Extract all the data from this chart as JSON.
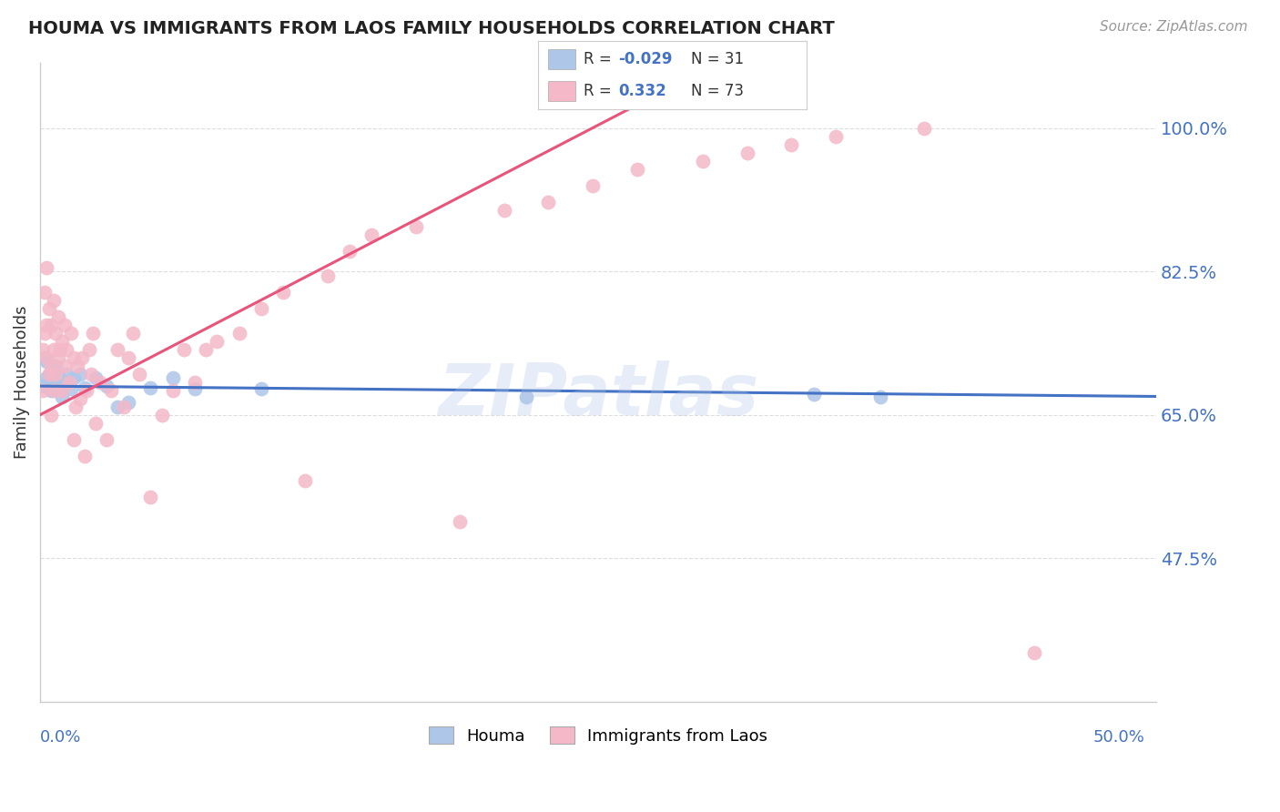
{
  "title": "HOUMA VS IMMIGRANTS FROM LAOS FAMILY HOUSEHOLDS CORRELATION CHART",
  "source": "Source: ZipAtlas.com",
  "ylabel": "Family Households",
  "ylim": [
    0.3,
    1.08
  ],
  "xlim": [
    0.0,
    0.505
  ],
  "yticks": [
    0.475,
    0.65,
    0.825,
    1.0
  ],
  "ytick_labels": [
    "47.5%",
    "65.0%",
    "82.5%",
    "100.0%"
  ],
  "houma_color": "#aec6e8",
  "laos_color": "#f4b8c8",
  "houma_line_color": "#4472c4",
  "laos_line_color": "#e8547a",
  "watermark": "ZIPatlas",
  "background_color": "#ffffff",
  "grid_color": "#dddddd",
  "houma_x": [
    0.001,
    0.002,
    0.003,
    0.003,
    0.004,
    0.005,
    0.005,
    0.006,
    0.006,
    0.007,
    0.007,
    0.008,
    0.009,
    0.01,
    0.011,
    0.012,
    0.014,
    0.015,
    0.018,
    0.02,
    0.025,
    0.03,
    0.035,
    0.04,
    0.05,
    0.06,
    0.07,
    0.1,
    0.22,
    0.35,
    0.38
  ],
  "houma_y": [
    0.685,
    0.72,
    0.695,
    0.715,
    0.7,
    0.68,
    0.695,
    0.705,
    0.69,
    0.7,
    0.71,
    0.685,
    0.695,
    0.672,
    0.69,
    0.7,
    0.682,
    0.695,
    0.7,
    0.683,
    0.695,
    0.685,
    0.66,
    0.665,
    0.683,
    0.695,
    0.682,
    0.682,
    0.672,
    0.675,
    0.672
  ],
  "laos_x": [
    0.001,
    0.001,
    0.002,
    0.002,
    0.003,
    0.003,
    0.003,
    0.004,
    0.004,
    0.005,
    0.005,
    0.005,
    0.006,
    0.006,
    0.006,
    0.007,
    0.007,
    0.008,
    0.008,
    0.009,
    0.01,
    0.01,
    0.011,
    0.011,
    0.012,
    0.013,
    0.014,
    0.015,
    0.015,
    0.016,
    0.017,
    0.018,
    0.019,
    0.02,
    0.021,
    0.022,
    0.023,
    0.024,
    0.025,
    0.027,
    0.03,
    0.032,
    0.035,
    0.038,
    0.04,
    0.042,
    0.045,
    0.05,
    0.055,
    0.06,
    0.065,
    0.07,
    0.075,
    0.08,
    0.09,
    0.1,
    0.11,
    0.12,
    0.13,
    0.14,
    0.15,
    0.17,
    0.19,
    0.21,
    0.23,
    0.25,
    0.27,
    0.3,
    0.32,
    0.34,
    0.36,
    0.4,
    0.45
  ],
  "laos_y": [
    0.68,
    0.73,
    0.75,
    0.8,
    0.72,
    0.76,
    0.83,
    0.7,
    0.78,
    0.65,
    0.71,
    0.76,
    0.68,
    0.73,
    0.79,
    0.7,
    0.75,
    0.72,
    0.77,
    0.73,
    0.68,
    0.74,
    0.71,
    0.76,
    0.73,
    0.69,
    0.75,
    0.62,
    0.72,
    0.66,
    0.71,
    0.67,
    0.72,
    0.6,
    0.68,
    0.73,
    0.7,
    0.75,
    0.64,
    0.69,
    0.62,
    0.68,
    0.73,
    0.66,
    0.72,
    0.75,
    0.7,
    0.55,
    0.65,
    0.68,
    0.73,
    0.69,
    0.73,
    0.74,
    0.75,
    0.78,
    0.8,
    0.57,
    0.82,
    0.85,
    0.87,
    0.88,
    0.52,
    0.9,
    0.91,
    0.93,
    0.95,
    0.96,
    0.97,
    0.98,
    0.99,
    1.0,
    0.36
  ]
}
